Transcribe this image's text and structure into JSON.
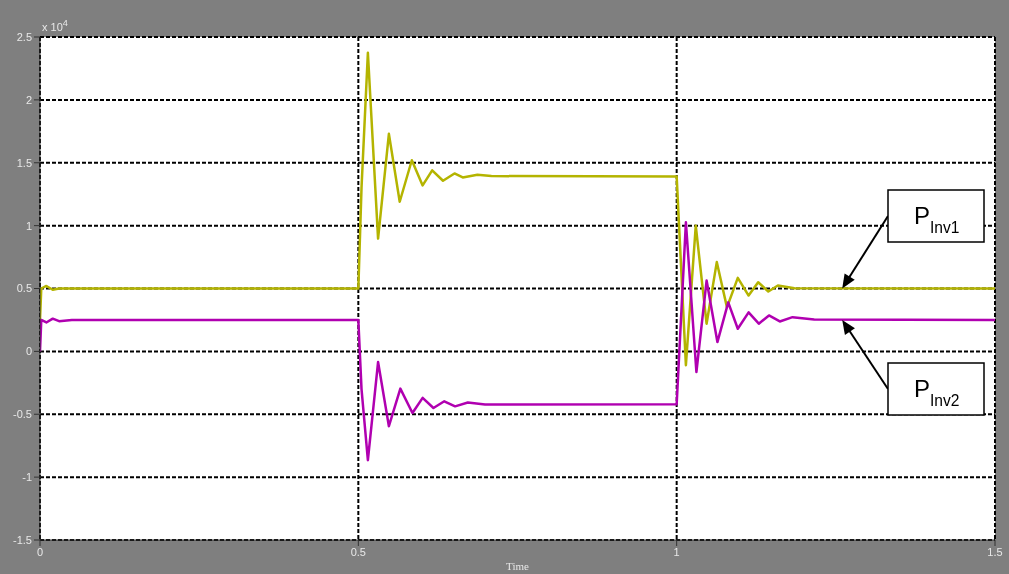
{
  "chart_data": {
    "type": "line",
    "xlabel": "Time",
    "xlim": [
      0,
      1.5
    ],
    "xticks": [
      0,
      0.5,
      1,
      {
        "value": 1.5,
        "label": "1.5"
      }
    ],
    "ylim": [
      -1.5,
      2.5
    ],
    "yticks": [
      -1.5,
      -1,
      -0.5,
      0,
      0.5,
      1,
      1.5,
      2,
      2.5
    ],
    "grid": true,
    "annotations": [
      "x 10$^{4}$"
    ],
    "series": [
      {
        "name": "P$_{Inv1}$",
        "color": "#b4b400",
        "x": [
          0,
          0.002,
          0.01,
          0.02,
          0.03,
          0.05,
          0.5,
          0.505,
          0.515,
          0.531,
          0.548,
          0.565,
          0.584,
          0.601,
          0.616,
          0.633,
          0.651,
          0.664,
          0.687,
          0.709,
          1.0,
          1.0145,
          1.03,
          1.047,
          1.063,
          1.079,
          1.096,
          1.113,
          1.128,
          1.144,
          1.159,
          1.185,
          1.5
        ],
        "values": [
          0.25,
          0.5,
          0.52,
          0.49,
          0.5,
          0.5,
          0.5,
          1.3,
          2.375,
          0.897,
          1.73,
          1.19,
          1.52,
          1.32,
          1.44,
          1.357,
          1.415,
          1.383,
          1.405,
          1.394,
          1.39,
          -0.11,
          1.0,
          0.22,
          0.71,
          0.35,
          0.585,
          0.444,
          0.55,
          0.476,
          0.524,
          0.502,
          0.5
        ]
      },
      {
        "name": "P$_{Inv2}$",
        "color": "#b000b0",
        "x": [
          0,
          0.002,
          0.01,
          0.02,
          0.03,
          0.05,
          0.5,
          0.505,
          0.515,
          0.531,
          0.548,
          0.566,
          0.585,
          0.601,
          0.618,
          0.635,
          0.652,
          0.672,
          0.699,
          1.0,
          1.0145,
          1.031,
          1.047,
          1.064,
          1.081,
          1.096,
          1.113,
          1.129,
          1.145,
          1.162,
          1.182,
          1.216,
          1.5
        ],
        "values": [
          0,
          0.25,
          0.23,
          0.26,
          0.24,
          0.25,
          0.25,
          -0.3,
          -0.865,
          -0.085,
          -0.595,
          -0.296,
          -0.49,
          -0.37,
          -0.45,
          -0.397,
          -0.437,
          -0.407,
          -0.423,
          -0.42,
          1.026,
          -0.164,
          0.563,
          0.074,
          0.39,
          0.18,
          0.31,
          0.22,
          0.286,
          0.238,
          0.272,
          0.254,
          0.25
        ]
      }
    ]
  }
}
